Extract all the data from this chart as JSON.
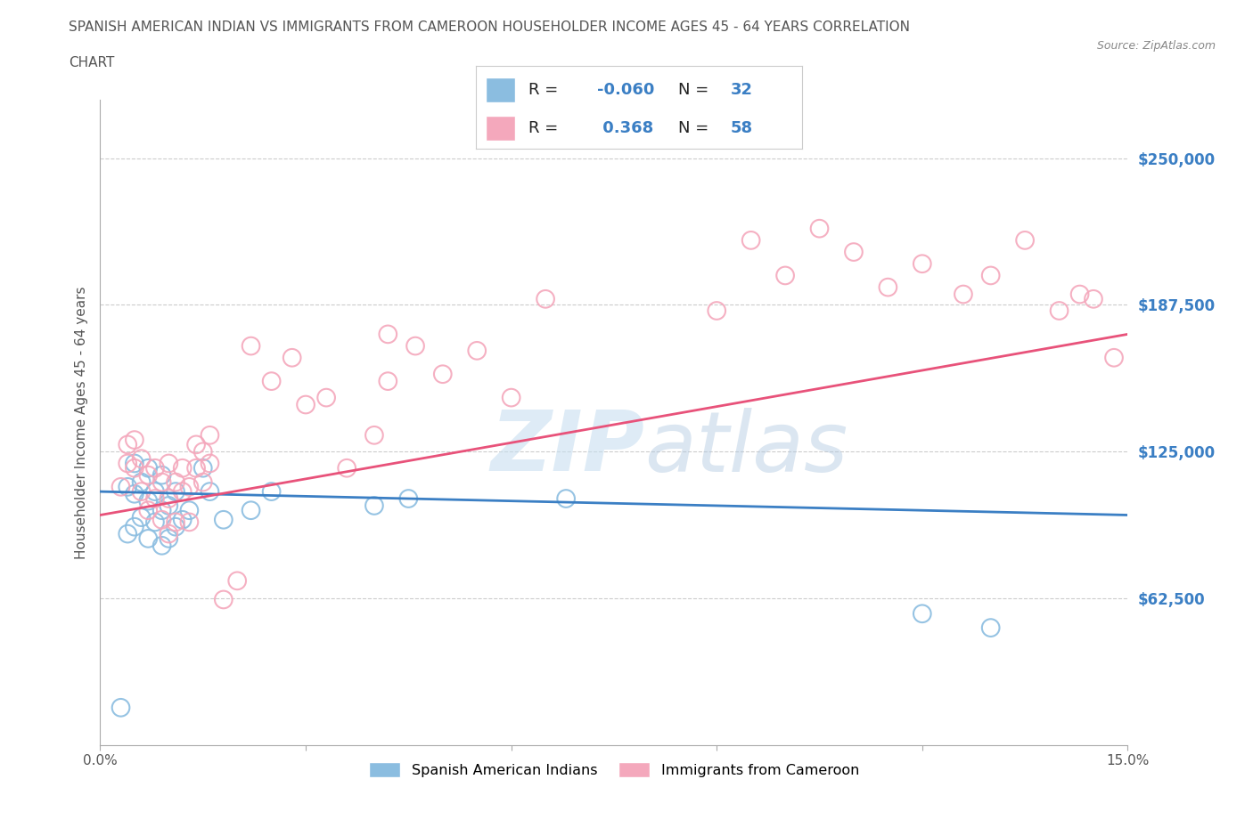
{
  "title_line1": "SPANISH AMERICAN INDIAN VS IMMIGRANTS FROM CAMEROON HOUSEHOLDER INCOME AGES 45 - 64 YEARS CORRELATION",
  "title_line2": "CHART",
  "source_text": "Source: ZipAtlas.com",
  "ylabel": "Householder Income Ages 45 - 64 years",
  "xlim": [
    0.0,
    0.15
  ],
  "ylim": [
    0,
    275000
  ],
  "yticks": [
    62500,
    125000,
    187500,
    250000
  ],
  "ytick_labels": [
    "$62,500",
    "$125,000",
    "$187,500",
    "$250,000"
  ],
  "xticks": [
    0.0,
    0.03,
    0.06,
    0.09,
    0.12,
    0.15
  ],
  "xtick_labels": [
    "0.0%",
    "",
    "",
    "",
    "",
    "15.0%"
  ],
  "blue_color": "#8bbde0",
  "pink_color": "#f4a8bc",
  "blue_line_color": "#3b7fc4",
  "pink_line_color": "#e8527a",
  "grid_color": "#cccccc",
  "title_color": "#555555",
  "blue_scatter_x": [
    0.003,
    0.004,
    0.004,
    0.005,
    0.005,
    0.005,
    0.006,
    0.006,
    0.007,
    0.007,
    0.007,
    0.008,
    0.008,
    0.009,
    0.009,
    0.009,
    0.01,
    0.01,
    0.011,
    0.011,
    0.012,
    0.013,
    0.015,
    0.016,
    0.018,
    0.022,
    0.025,
    0.04,
    0.045,
    0.068,
    0.12,
    0.13
  ],
  "blue_scatter_y": [
    16000,
    90000,
    110000,
    93000,
    107000,
    120000,
    97000,
    112000,
    88000,
    104000,
    118000,
    95000,
    108000,
    85000,
    100000,
    115000,
    88000,
    102000,
    93000,
    108000,
    96000,
    100000,
    118000,
    108000,
    96000,
    100000,
    108000,
    102000,
    105000,
    105000,
    56000,
    50000
  ],
  "pink_scatter_x": [
    0.003,
    0.004,
    0.004,
    0.005,
    0.005,
    0.006,
    0.006,
    0.007,
    0.007,
    0.008,
    0.008,
    0.009,
    0.009,
    0.01,
    0.01,
    0.01,
    0.011,
    0.011,
    0.012,
    0.012,
    0.013,
    0.013,
    0.014,
    0.014,
    0.015,
    0.015,
    0.016,
    0.016,
    0.018,
    0.02,
    0.022,
    0.025,
    0.028,
    0.03,
    0.033,
    0.036,
    0.04,
    0.042,
    0.046,
    0.05,
    0.055,
    0.06,
    0.065,
    0.042,
    0.09,
    0.095,
    0.1,
    0.105,
    0.11,
    0.115,
    0.12,
    0.126,
    0.13,
    0.135,
    0.14,
    0.143,
    0.145,
    0.148
  ],
  "pink_scatter_y": [
    110000,
    120000,
    128000,
    118000,
    130000,
    108000,
    122000,
    100000,
    115000,
    105000,
    118000,
    96000,
    112000,
    90000,
    105000,
    120000,
    95000,
    112000,
    108000,
    118000,
    95000,
    110000,
    118000,
    128000,
    112000,
    125000,
    120000,
    132000,
    62000,
    70000,
    170000,
    155000,
    165000,
    145000,
    148000,
    118000,
    132000,
    155000,
    170000,
    158000,
    168000,
    148000,
    190000,
    175000,
    185000,
    215000,
    200000,
    220000,
    210000,
    195000,
    205000,
    192000,
    200000,
    215000,
    185000,
    192000,
    190000,
    165000
  ],
  "blue_trendline_x": [
    0.0,
    0.15
  ],
  "blue_trendline_y": [
    108000,
    98000
  ],
  "pink_trendline_x": [
    0.0,
    0.15
  ],
  "pink_trendline_y": [
    98000,
    175000
  ]
}
